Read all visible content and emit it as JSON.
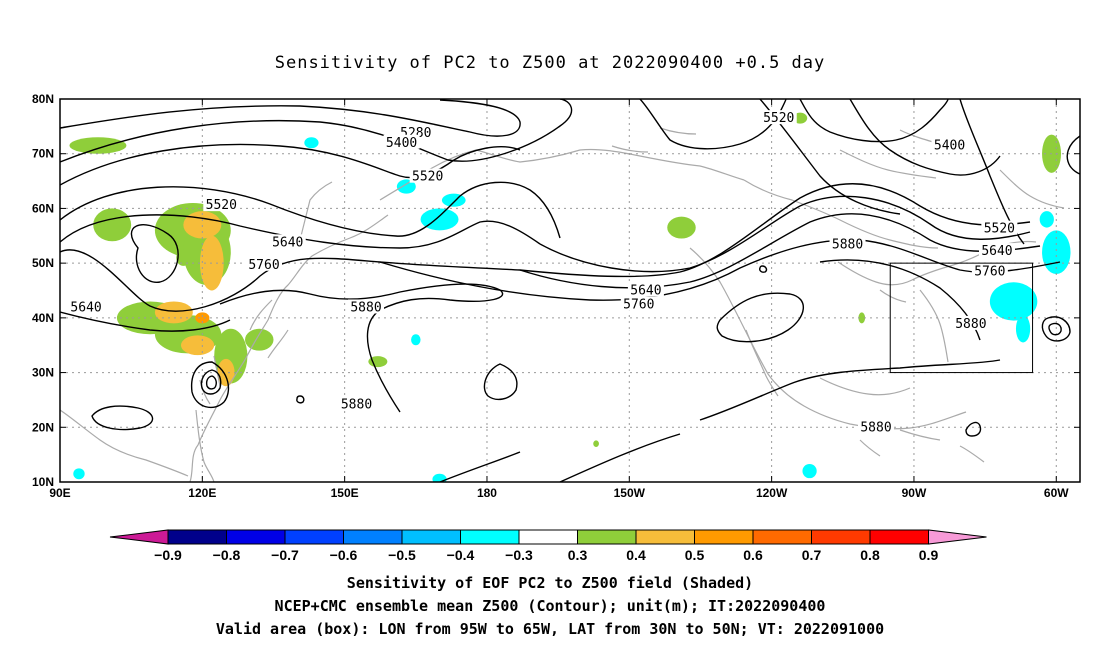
{
  "title": "Sensitivity of PC2 to Z500 at 2022090400 +0.5 day",
  "map": {
    "lon_labels": [
      "90E",
      "120E",
      "150E",
      "180",
      "150W",
      "120W",
      "90W",
      "60W"
    ],
    "lat_labels": [
      "80N",
      "70N",
      "60N",
      "50N",
      "40N",
      "30N",
      "20N",
      "10N"
    ],
    "lon_range": [
      90,
      305
    ],
    "lat_range": [
      10,
      80
    ],
    "valid_box": {
      "lon": [
        265,
        295
      ],
      "lat": [
        30,
        50
      ]
    },
    "contour_labels": [
      {
        "text": "5280",
        "lon": 165,
        "lat": 73.8
      },
      {
        "text": "5400",
        "lon": 162,
        "lat": 72.0
      },
      {
        "text": "5520",
        "lon": 167.5,
        "lat": 65.8
      },
      {
        "text": "5520",
        "lon": 241.5,
        "lat": 76.5
      },
      {
        "text": "5400",
        "lon": 277.5,
        "lat": 71.5
      },
      {
        "text": "5520",
        "lon": 124,
        "lat": 60.6
      },
      {
        "text": "5640",
        "lon": 138,
        "lat": 53.8
      },
      {
        "text": "5760",
        "lon": 133,
        "lat": 49.7
      },
      {
        "text": "5640",
        "lon": 95.5,
        "lat": 41.9
      },
      {
        "text": "5880",
        "lon": 154.5,
        "lat": 41.9
      },
      {
        "text": "5880",
        "lon": 152.5,
        "lat": 24.2
      },
      {
        "text": "5640",
        "lon": 213.5,
        "lat": 45.0
      },
      {
        "text": "5760",
        "lon": 212,
        "lat": 42.4
      },
      {
        "text": "5880",
        "lon": 256,
        "lat": 53.4
      },
      {
        "text": "5520",
        "lon": 288,
        "lat": 56.3
      },
      {
        "text": "5640",
        "lon": 287.5,
        "lat": 52.2
      },
      {
        "text": "5760",
        "lon": 286,
        "lat": 48.5
      },
      {
        "text": "5880",
        "lon": 282,
        "lat": 38.9
      },
      {
        "text": "5880",
        "lon": 262,
        "lat": 20.0
      }
    ],
    "shaded_blobs": [
      {
        "lon": 101,
        "lat": 57,
        "rx": 4,
        "ry": 3,
        "color": "#8fce3a"
      },
      {
        "lon": 118,
        "lat": 56,
        "rx": 8,
        "ry": 5,
        "color": "#8fce3a"
      },
      {
        "lon": 121,
        "lat": 52,
        "rx": 5,
        "ry": 6,
        "color": "#8fce3a"
      },
      {
        "lon": 120,
        "lat": 57,
        "rx": 4,
        "ry": 2.5,
        "color": "#f6bd3a"
      },
      {
        "lon": 122,
        "lat": 50,
        "rx": 2.5,
        "ry": 5,
        "color": "#f6bd3a"
      },
      {
        "lon": 109,
        "lat": 40,
        "rx": 7,
        "ry": 3,
        "color": "#8fce3a"
      },
      {
        "lon": 117,
        "lat": 37,
        "rx": 7,
        "ry": 3.5,
        "color": "#8fce3a"
      },
      {
        "lon": 114,
        "lat": 41,
        "rx": 4,
        "ry": 2,
        "color": "#f6bd3a"
      },
      {
        "lon": 119,
        "lat": 35,
        "rx": 3.5,
        "ry": 1.8,
        "color": "#f6bd3a"
      },
      {
        "lon": 126,
        "lat": 33,
        "rx": 3.5,
        "ry": 5,
        "color": "#8fce3a"
      },
      {
        "lon": 132,
        "lat": 36,
        "rx": 3,
        "ry": 2,
        "color": "#8fce3a"
      },
      {
        "lon": 125,
        "lat": 30,
        "rx": 1.8,
        "ry": 2.5,
        "color": "#f6bd3a"
      },
      {
        "lon": 98,
        "lat": 71.5,
        "rx": 6,
        "ry": 1.5,
        "color": "#8fce3a"
      },
      {
        "lon": 170,
        "lat": 58,
        "rx": 4,
        "ry": 2,
        "color": "#00ffff"
      },
      {
        "lon": 173,
        "lat": 61.5,
        "rx": 2.5,
        "ry": 1.2,
        "color": "#00ffff"
      },
      {
        "lon": 163,
        "lat": 64,
        "rx": 2,
        "ry": 1.3,
        "color": "#00ffff"
      },
      {
        "lon": 221,
        "lat": 56.5,
        "rx": 3,
        "ry": 2,
        "color": "#8fce3a"
      },
      {
        "lon": 299,
        "lat": 70,
        "rx": 2,
        "ry": 3.5,
        "color": "#8fce3a"
      },
      {
        "lon": 246,
        "lat": 76.5,
        "rx": 1.5,
        "ry": 1,
        "color": "#8fce3a"
      },
      {
        "lon": 300,
        "lat": 52,
        "rx": 3,
        "ry": 4,
        "color": "#00ffff"
      },
      {
        "lon": 291,
        "lat": 43,
        "rx": 5,
        "ry": 3.5,
        "color": "#00ffff"
      },
      {
        "lon": 293,
        "lat": 38,
        "rx": 1.5,
        "ry": 2.5,
        "color": "#00ffff"
      },
      {
        "lon": 298,
        "lat": 58,
        "rx": 1.5,
        "ry": 1.5,
        "color": "#00ffff"
      },
      {
        "lon": 248,
        "lat": 12,
        "rx": 1.5,
        "ry": 1.3,
        "color": "#00ffff"
      },
      {
        "lon": 170,
        "lat": 10.5,
        "rx": 1.5,
        "ry": 1,
        "color": "#00ffff"
      },
      {
        "lon": 165,
        "lat": 36,
        "rx": 1,
        "ry": 1,
        "color": "#00ffff"
      },
      {
        "lon": 94,
        "lat": 11.5,
        "rx": 1.2,
        "ry": 1,
        "color": "#00ffff"
      },
      {
        "lon": 143,
        "lat": 72,
        "rx": 1.5,
        "ry": 1,
        "color": "#00ffff"
      },
      {
        "lon": 157,
        "lat": 32,
        "rx": 2,
        "ry": 1,
        "color": "#8fce3a"
      },
      {
        "lon": 203,
        "lat": 17,
        "rx": 0.6,
        "ry": 0.6,
        "color": "#8fce3a"
      },
      {
        "lon": 259,
        "lat": 40,
        "rx": 0.7,
        "ry": 1,
        "color": "#8fce3a"
      },
      {
        "lon": 116,
        "lat": 51,
        "rx": 1.5,
        "ry": 1.5,
        "color": "#8fce3a"
      },
      {
        "lon": 120,
        "lat": 40,
        "rx": 1.5,
        "ry": 1,
        "color": "#ff9a00"
      }
    ]
  },
  "colorbar": {
    "labels": [
      "−0.9",
      "−0.8",
      "−0.7",
      "−0.6",
      "−0.5",
      "−0.4",
      "−0.3",
      "0.3",
      "0.4",
      "0.5",
      "0.6",
      "0.7",
      "0.8",
      "0.9"
    ],
    "end_colors": [
      "#cc1a96",
      "#f79ad7"
    ],
    "colors": [
      "#00008b",
      "#0000e6",
      "#0040ff",
      "#0080ff",
      "#00bfff",
      "#00ffff",
      "#ffffff",
      "#8fce3a",
      "#f6bd3a",
      "#ff9a00",
      "#ff6a00",
      "#ff3a00",
      "#ff0000"
    ]
  },
  "caption": {
    "line1": "Sensitivity of EOF PC2 to Z500 field (Shaded)",
    "line2": "NCEP+CMC ensemble mean Z500 (Contour); unit(m); IT:2022090400",
    "line3": "Valid area (box): LON from 95W to 65W, LAT from 30N to 50N; VT: 2022091000"
  }
}
